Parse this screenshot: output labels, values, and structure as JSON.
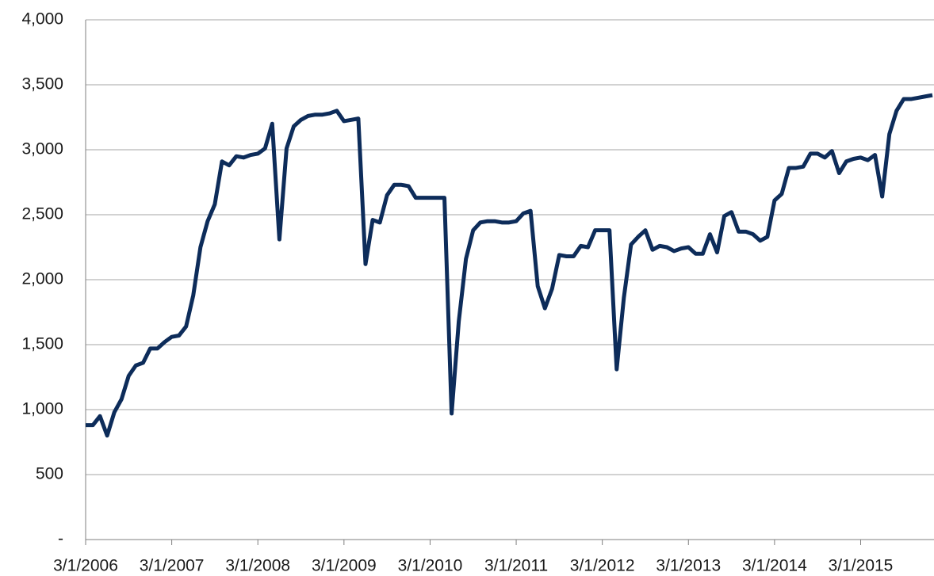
{
  "chart_data": {
    "type": "line",
    "categories": [
      "3/1/2006",
      null,
      null,
      null,
      null,
      null,
      null,
      null,
      null,
      null,
      null,
      null,
      "3/1/2007",
      null,
      null,
      null,
      null,
      null,
      null,
      null,
      null,
      null,
      null,
      null,
      "3/1/2008",
      null,
      null,
      null,
      null,
      null,
      null,
      null,
      null,
      null,
      null,
      null,
      "3/1/2009",
      null,
      null,
      null,
      null,
      null,
      null,
      null,
      null,
      null,
      null,
      null,
      "3/1/2010",
      null,
      null,
      null,
      null,
      null,
      null,
      null,
      null,
      null,
      null,
      null,
      "3/1/2011",
      null,
      null,
      null,
      null,
      null,
      null,
      null,
      null,
      null,
      null,
      null,
      "3/1/2012",
      null,
      null,
      null,
      null,
      null,
      null,
      null,
      null,
      null,
      null,
      null,
      "3/1/2013",
      null,
      null,
      null,
      null,
      null,
      null,
      null,
      null,
      null,
      null,
      null,
      "3/1/2014",
      null,
      null,
      null,
      null,
      null,
      null,
      null,
      null,
      null,
      null,
      null,
      "3/1/2015",
      null,
      null,
      null,
      null,
      null,
      null,
      null,
      null,
      null,
      null
    ],
    "series": [
      {
        "color": "#0d2c5a",
        "values": [
          880,
          880,
          950,
          800,
          980,
          1080,
          1260,
          1340,
          1360,
          1470,
          1470,
          1520,
          1560,
          1570,
          1640,
          1880,
          2250,
          2450,
          2580,
          2910,
          2880,
          2950,
          2940,
          2960,
          2970,
          3010,
          3200,
          2310,
          3010,
          3180,
          3230,
          3260,
          3270,
          3270,
          3280,
          3300,
          3220,
          3230,
          3240,
          2120,
          2460,
          2440,
          2650,
          2730,
          2730,
          2720,
          2630,
          2630,
          2630,
          2630,
          2630,
          970,
          1680,
          2160,
          2380,
          2440,
          2450,
          2450,
          2440,
          2440,
          2450,
          2510,
          2530,
          1950,
          1780,
          1930,
          2190,
          2180,
          2180,
          2260,
          2250,
          2380,
          2380,
          2380,
          1310,
          1860,
          2270,
          2330,
          2380,
          2230,
          2260,
          2250,
          2220,
          2240,
          2250,
          2200,
          2200,
          2350,
          2210,
          2490,
          2520,
          2370,
          2370,
          2350,
          2300,
          2330,
          2610,
          2660,
          2860,
          2860,
          2870,
          2970,
          2970,
          2940,
          2990,
          2820,
          2910,
          2930,
          2940,
          2920,
          2960,
          2640,
          3120,
          3300,
          3390,
          3390,
          3400,
          3410,
          3420
        ]
      }
    ],
    "ylim": [
      0,
      4000
    ],
    "yticks": [
      {
        "value": 0,
        "label": "-"
      },
      500,
      {
        "value": 1000,
        "label": "1,000"
      },
      {
        "value": 1500,
        "label": "1,500"
      },
      {
        "value": 2000,
        "label": "2,000"
      },
      {
        "value": 2500,
        "label": "2,500"
      },
      {
        "value": 3000,
        "label": "3,000"
      },
      {
        "value": 3500,
        "label": "3,500"
      },
      {
        "value": 4000,
        "label": "4,000"
      }
    ],
    "grid": true
  }
}
